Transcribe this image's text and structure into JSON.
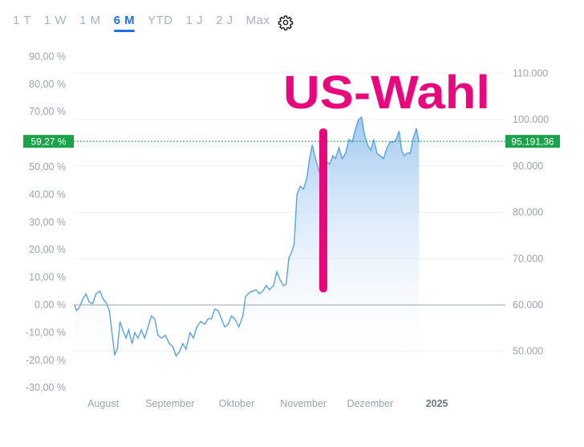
{
  "toolbar": {
    "tabs": [
      {
        "label": "1 T",
        "active": false
      },
      {
        "label": "1 W",
        "active": false
      },
      {
        "label": "1 M",
        "active": false
      },
      {
        "label": "6 M",
        "active": true
      },
      {
        "label": "YTD",
        "active": false
      },
      {
        "label": "1 J",
        "active": false
      },
      {
        "label": "2 J",
        "active": false
      },
      {
        "label": "Max",
        "active": false
      }
    ],
    "settings_icon": "gear-icon"
  },
  "chart_data": {
    "type": "area",
    "annotation": "US-Wahl",
    "annotation_x": "Nov",
    "colors": {
      "line": "#5aa2df",
      "fill": "#a9cdf2",
      "annotation": "#e8077c",
      "badge": "#1aa34a",
      "zero_line": "#9aa4ae"
    },
    "x_labels": [
      {
        "label": "August",
        "month": 1.5
      },
      {
        "label": "September",
        "month": 2.5
      },
      {
        "label": "Oktober",
        "month": 3.5
      },
      {
        "label": "November",
        "month": 4.5
      },
      {
        "label": "Dezember",
        "month": 5.5
      },
      {
        "label": "2025",
        "month": 6.5,
        "bold": true
      }
    ],
    "y_left": {
      "ticks": [
        -30,
        -20,
        -10,
        0,
        10,
        20,
        30,
        40,
        50,
        60,
        70,
        80,
        90
      ],
      "tick_labels": [
        "-30,00 %",
        "-20,00 %",
        "-10,00 %",
        "0,00 %",
        "10,00 %",
        "20,00 %",
        "30,00 %",
        "40,00 %",
        "50,00 %",
        "60,00 %",
        "70,00 %",
        "80,00 %",
        "90,00 %"
      ]
    },
    "y_right": {
      "ticks": [
        50000,
        60000,
        70000,
        80000,
        90000,
        100000,
        110000
      ],
      "tick_labels": [
        "50.000",
        "60.000",
        "70.000",
        "80.000",
        "90.000",
        "100.000",
        "110.000"
      ]
    },
    "current": {
      "percent": 59.27,
      "percent_label": "59,27 %",
      "price": 95191.36,
      "price_label": "95.191,36"
    },
    "annotation_bar": {
      "top_percent": 64,
      "bottom_percent": 4.5
    },
    "series": [
      {
        "values_percent": [
          [
            1.0,
            0
          ],
          [
            1.03,
            -2
          ],
          [
            1.07,
            -1
          ],
          [
            1.12,
            2
          ],
          [
            1.17,
            4
          ],
          [
            1.22,
            1
          ],
          [
            1.27,
            0.5
          ],
          [
            1.32,
            4
          ],
          [
            1.38,
            5
          ],
          [
            1.43,
            2
          ],
          [
            1.47,
            1
          ],
          [
            1.52,
            -2
          ],
          [
            1.56,
            -10
          ],
          [
            1.6,
            -18
          ],
          [
            1.64,
            -16
          ],
          [
            1.68,
            -6
          ],
          [
            1.72,
            -9
          ],
          [
            1.77,
            -12
          ],
          [
            1.81,
            -9
          ],
          [
            1.86,
            -14
          ],
          [
            1.9,
            -10
          ],
          [
            1.95,
            -12
          ],
          [
            2.0,
            -9
          ],
          [
            2.05,
            -12
          ],
          [
            2.1,
            -8
          ],
          [
            2.15,
            -4
          ],
          [
            2.2,
            -5
          ],
          [
            2.25,
            -11
          ],
          [
            2.3,
            -12
          ],
          [
            2.36,
            -11
          ],
          [
            2.42,
            -14
          ],
          [
            2.47,
            -15
          ],
          [
            2.52,
            -18.5
          ],
          [
            2.57,
            -17
          ],
          [
            2.62,
            -14
          ],
          [
            2.67,
            -16
          ],
          [
            2.73,
            -10
          ],
          [
            2.78,
            -12
          ],
          [
            2.83,
            -8
          ],
          [
            2.89,
            -6
          ],
          [
            2.95,
            -7
          ],
          [
            3.0,
            -5
          ],
          [
            3.05,
            -5
          ],
          [
            3.1,
            -1.5
          ],
          [
            3.15,
            -2
          ],
          [
            3.2,
            -5
          ],
          [
            3.25,
            -8
          ],
          [
            3.3,
            -7
          ],
          [
            3.35,
            -4
          ],
          [
            3.4,
            -5
          ],
          [
            3.46,
            -8
          ],
          [
            3.52,
            -4
          ],
          [
            3.56,
            3
          ],
          [
            3.62,
            4.5
          ],
          [
            3.67,
            5
          ],
          [
            3.72,
            5.5
          ],
          [
            3.77,
            4
          ],
          [
            3.82,
            5
          ],
          [
            3.87,
            7
          ],
          [
            3.92,
            5.5
          ],
          [
            3.98,
            7
          ],
          [
            4.03,
            12
          ],
          [
            4.08,
            9
          ],
          [
            4.13,
            7
          ],
          [
            4.17,
            7.5
          ],
          [
            4.21,
            17
          ],
          [
            4.25,
            19
          ],
          [
            4.29,
            22
          ],
          [
            4.33,
            40
          ],
          [
            4.38,
            43
          ],
          [
            4.43,
            42
          ],
          [
            4.48,
            46
          ],
          [
            4.52,
            53
          ],
          [
            4.56,
            58
          ],
          [
            4.62,
            52
          ],
          [
            4.67,
            48
          ],
          [
            4.72,
            50
          ],
          [
            4.77,
            52
          ],
          [
            4.82,
            51
          ],
          [
            4.87,
            54
          ],
          [
            4.91,
            53
          ],
          [
            4.96,
            57
          ],
          [
            5.01,
            53
          ],
          [
            5.06,
            55
          ],
          [
            5.11,
            60
          ],
          [
            5.16,
            59
          ],
          [
            5.2,
            63
          ],
          [
            5.25,
            67
          ],
          [
            5.3,
            68
          ],
          [
            5.34,
            62
          ],
          [
            5.39,
            58
          ],
          [
            5.44,
            56
          ],
          [
            5.48,
            60
          ],
          [
            5.53,
            55
          ],
          [
            5.58,
            54
          ],
          [
            5.63,
            53
          ],
          [
            5.68,
            57
          ],
          [
            5.73,
            59
          ],
          [
            5.78,
            59
          ],
          [
            5.82,
            60
          ],
          [
            5.86,
            63
          ],
          [
            5.9,
            56
          ],
          [
            5.94,
            54
          ],
          [
            5.98,
            55
          ],
          [
            6.03,
            55
          ],
          [
            6.07,
            60
          ],
          [
            6.12,
            64
          ],
          [
            6.16,
            59
          ]
        ]
      }
    ]
  }
}
